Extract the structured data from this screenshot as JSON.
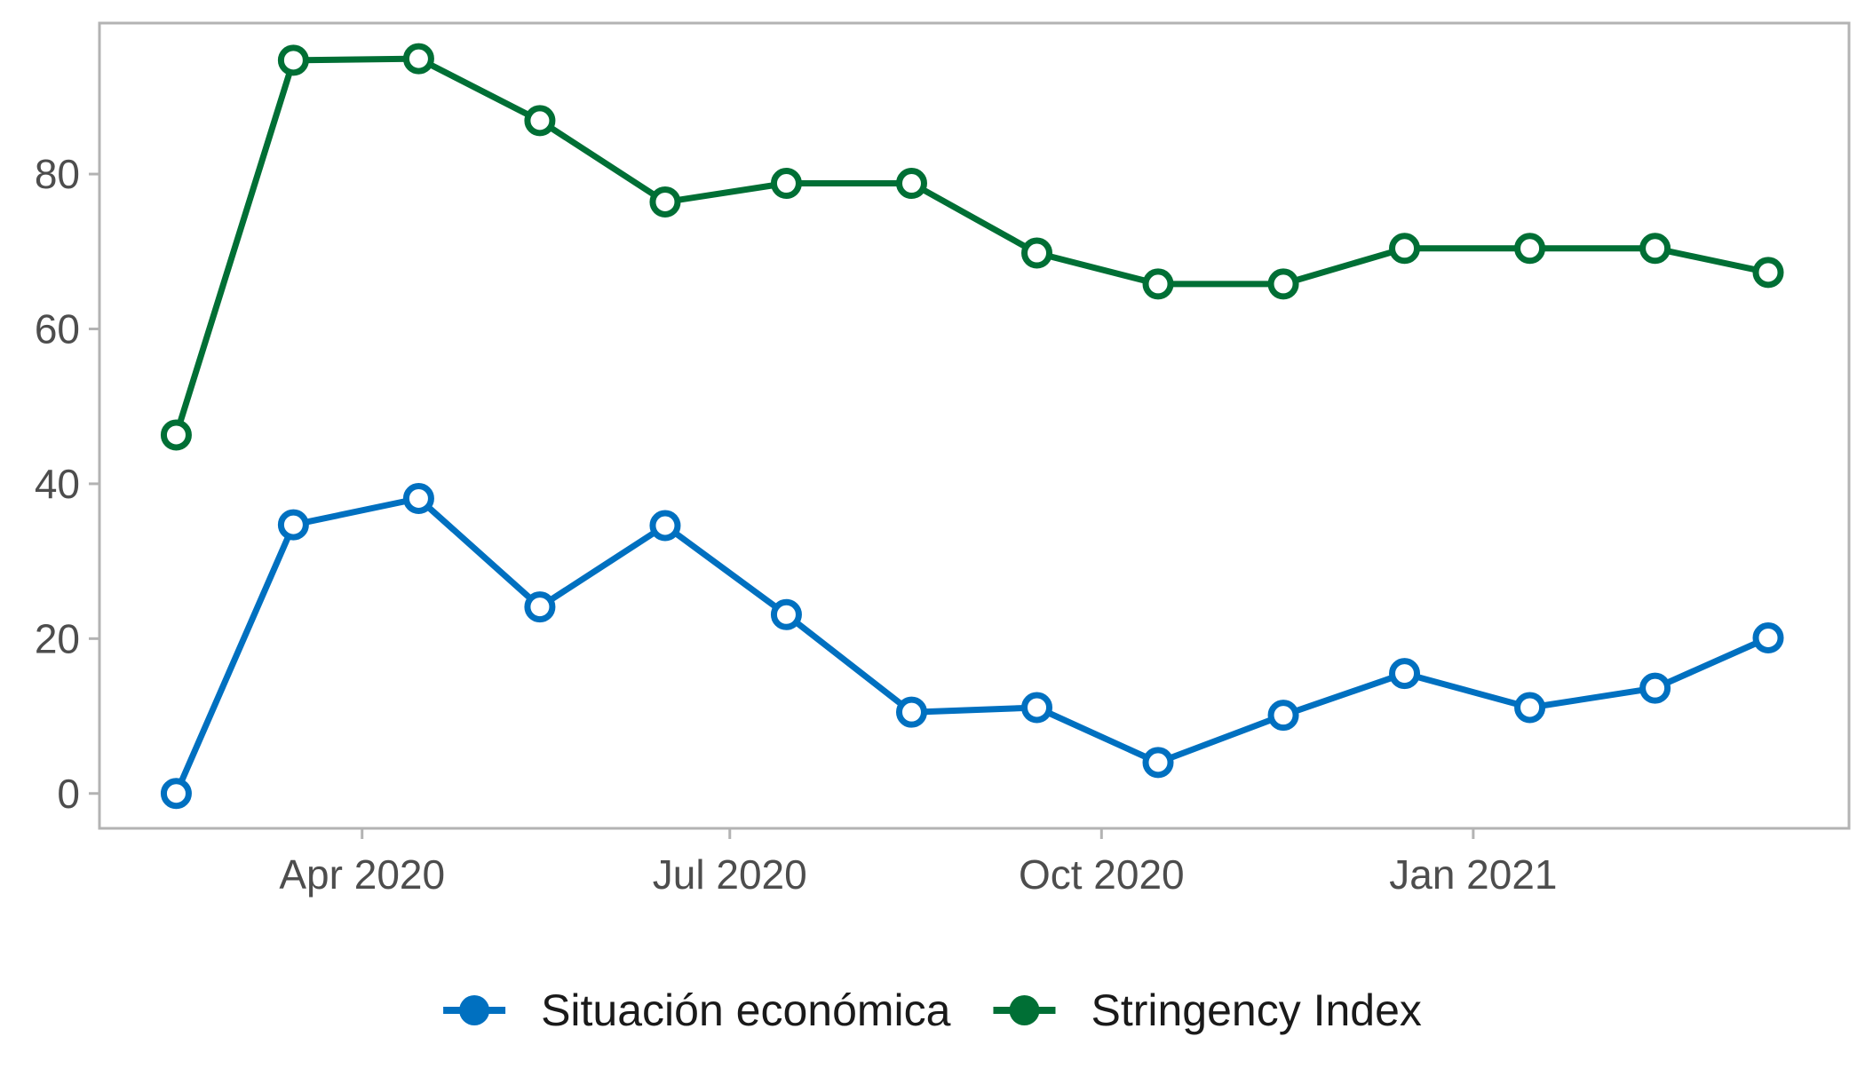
{
  "chart_data": {
    "type": "line",
    "title": "",
    "xlabel": "",
    "ylabel": "",
    "x": [
      "2020-02-15",
      "2020-03-15",
      "2020-04-15",
      "2020-05-15",
      "2020-06-15",
      "2020-07-15",
      "2020-08-15",
      "2020-09-15",
      "2020-10-15",
      "2020-11-15",
      "2020-12-15",
      "2021-01-15",
      "2021-02-15",
      "2021-03-15"
    ],
    "xlim": [
      "2020-01-27",
      "2021-04-04"
    ],
    "ylim": [
      -4.5,
      99.5
    ],
    "x_ticks": [
      {
        "value": "2020-04-01",
        "label": "Apr 2020"
      },
      {
        "value": "2020-07-01",
        "label": "Jul 2020"
      },
      {
        "value": "2020-10-01",
        "label": "Oct 2020"
      },
      {
        "value": "2021-01-01",
        "label": "Jan 2021"
      }
    ],
    "y_ticks": [
      {
        "value": 0,
        "label": "0"
      },
      {
        "value": 20,
        "label": "20"
      },
      {
        "value": 40,
        "label": "40"
      },
      {
        "value": 60,
        "label": "60"
      },
      {
        "value": 80,
        "label": "80"
      }
    ],
    "grid": false,
    "legend_position": "bottom",
    "series": [
      {
        "name": "Situación económica",
        "color": "#0070c0",
        "values": [
          0,
          34.7,
          38.1,
          24.1,
          34.6,
          23.1,
          10.5,
          11.1,
          4.0,
          10.1,
          15.5,
          11.1,
          13.6,
          20.1
        ]
      },
      {
        "name": "Stringency Index",
        "color": "#006f35",
        "values": [
          46.3,
          94.7,
          94.9,
          86.9,
          76.4,
          78.8,
          78.8,
          69.8,
          65.8,
          65.8,
          70.4,
          70.4,
          70.4,
          67.3
        ]
      }
    ]
  }
}
